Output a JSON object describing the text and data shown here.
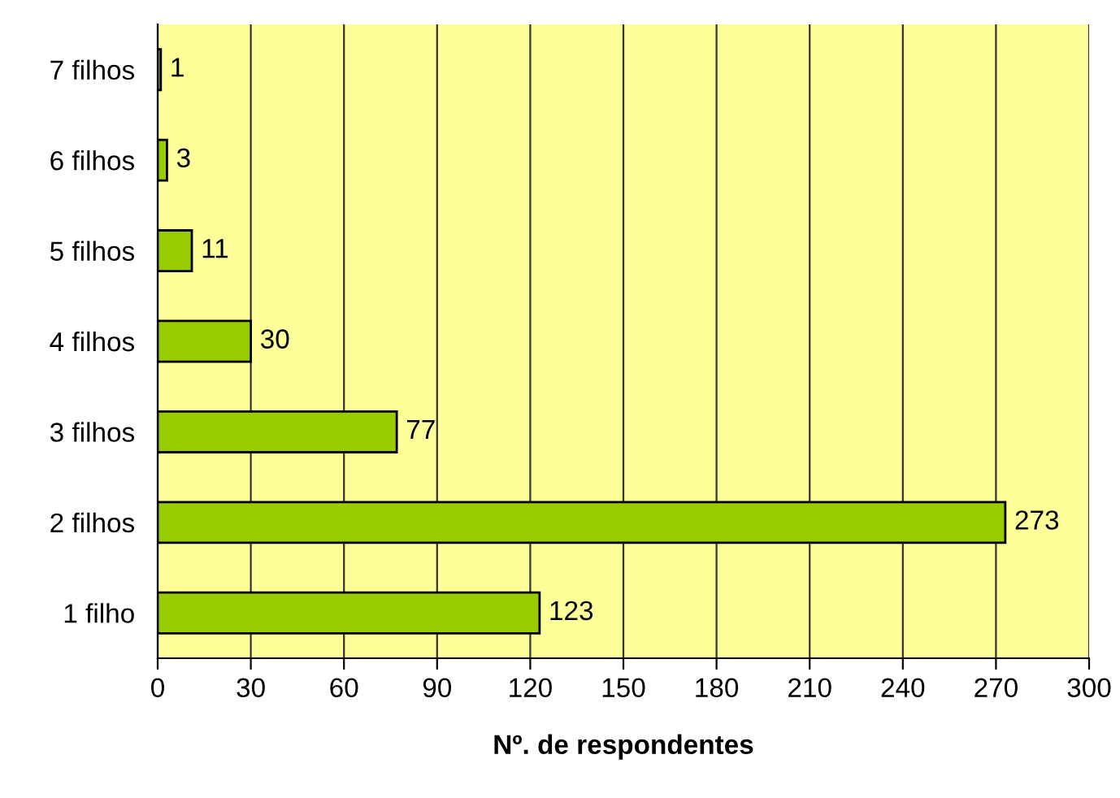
{
  "chart_data": {
    "type": "bar",
    "orientation": "horizontal",
    "xlabel": "Nº. de respondentes",
    "categories": [
      "7 filhos",
      "6 filhos",
      "5 filhos",
      "4 filhos",
      "3 filhos",
      "2 filhos",
      "1 filho"
    ],
    "values": [
      1,
      3,
      11,
      30,
      77,
      273,
      123
    ],
    "color": "#99cc00",
    "data_labels": true,
    "xlim": [
      0,
      300
    ],
    "xticks": [
      0,
      30,
      60,
      90,
      120,
      150,
      180,
      210,
      240,
      270,
      300
    ],
    "grid": "x"
  }
}
